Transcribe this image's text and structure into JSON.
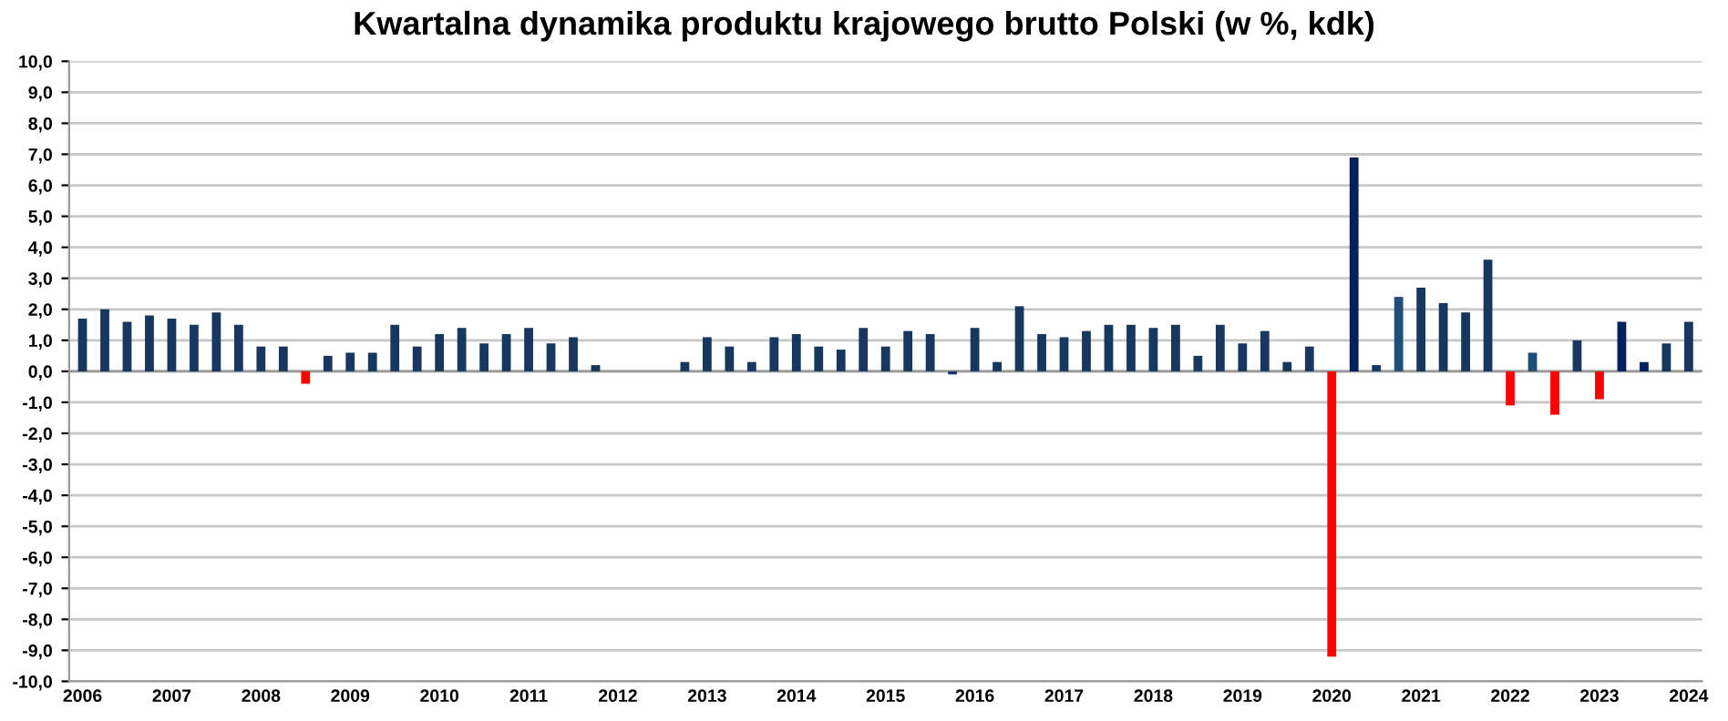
{
  "chart_data": {
    "type": "bar",
    "title": "Kwartalna dynamika produktu krajowego brutto Polski (w %, kdk)",
    "categories": [
      "2006",
      null,
      null,
      null,
      "2007",
      null,
      null,
      null,
      "2008",
      null,
      null,
      null,
      "2009",
      null,
      null,
      null,
      "2010",
      null,
      null,
      null,
      "2011",
      null,
      null,
      null,
      "2012",
      null,
      null,
      null,
      "2013",
      null,
      null,
      null,
      "2014",
      null,
      null,
      null,
      "2015",
      null,
      null,
      null,
      "2016",
      null,
      null,
      null,
      "2017",
      null,
      null,
      null,
      "2018",
      null,
      null,
      null,
      "2019",
      null,
      null,
      null,
      "2020",
      null,
      null,
      null,
      "2021",
      null,
      null,
      null,
      "2022",
      null,
      null,
      null,
      "2023",
      null,
      null,
      null,
      "2024"
    ],
    "values": [
      1.7,
      2.0,
      1.6,
      1.8,
      1.7,
      1.5,
      1.9,
      1.5,
      0.8,
      0.8,
      -0.4,
      0.5,
      0.6,
      0.6,
      1.5,
      0.8,
      1.2,
      1.4,
      0.9,
      1.2,
      1.4,
      0.9,
      1.1,
      0.2,
      0.0,
      0.0,
      0.0,
      0.3,
      1.1,
      0.8,
      0.3,
      1.1,
      1.2,
      0.8,
      0.7,
      1.4,
      0.8,
      1.3,
      1.2,
      -0.1,
      1.4,
      0.3,
      2.1,
      1.2,
      1.1,
      1.3,
      1.5,
      1.5,
      1.4,
      1.5,
      0.5,
      1.5,
      0.9,
      1.3,
      0.3,
      0.8,
      -9.2,
      6.9,
      0.2,
      2.4,
      2.7,
      2.2,
      1.9,
      3.6,
      -1.1,
      0.6,
      -1.4,
      1.0,
      -0.9,
      1.6,
      0.3,
      0.9,
      1.6
    ],
    "colors": [
      "#17375e",
      "#17375e",
      "#17375e",
      "#17375e",
      "#17375e",
      "#17375e",
      "#17375e",
      "#17375e",
      "#17375e",
      "#17375e",
      "#ff0000",
      "#17375e",
      "#17375e",
      "#17375e",
      "#17375e",
      "#17375e",
      "#17375e",
      "#17375e",
      "#17375e",
      "#17375e",
      "#17375e",
      "#17375e",
      "#17375e",
      "#17375e",
      "#17375e",
      "#17375e",
      "#17375e",
      "#17375e",
      "#17375e",
      "#17375e",
      "#17375e",
      "#17375e",
      "#17375e",
      "#17375e",
      "#17375e",
      "#17375e",
      "#17375e",
      "#17375e",
      "#17375e",
      "#17375e",
      "#17375e",
      "#17375e",
      "#17375e",
      "#17375e",
      "#17375e",
      "#17375e",
      "#17375e",
      "#17375e",
      "#17375e",
      "#17375e",
      "#17375e",
      "#17375e",
      "#17375e",
      "#17375e",
      "#17375e",
      "#17375e",
      "#ff0000",
      "#002060",
      "#17375e",
      "#1f4e79",
      "#17375e",
      "#17375e",
      "#17375e",
      "#17375e",
      "#ff0000",
      "#1f4e79",
      "#ff0000",
      "#17375e",
      "#ff0000",
      "#002060",
      "#002060",
      "#17375e",
      "#17375e"
    ],
    "ylim": [
      -10,
      10
    ],
    "yticks": [
      {
        "value": -10,
        "label": "-10,0"
      },
      {
        "value": -9,
        "label": "-9,0"
      },
      {
        "value": -8,
        "label": "-8,0"
      },
      {
        "value": -7,
        "label": "-7,0"
      },
      {
        "value": -6,
        "label": "-6,0"
      },
      {
        "value": -5,
        "label": "-5,0"
      },
      {
        "value": -4,
        "label": "-4,0"
      },
      {
        "value": -3,
        "label": "-3,0"
      },
      {
        "value": -2,
        "label": "-2,0"
      },
      {
        "value": -1,
        "label": "-1,0"
      },
      {
        "value": 0,
        "label": "0,0"
      },
      {
        "value": 1,
        "label": "1,0"
      },
      {
        "value": 2,
        "label": "2,0"
      },
      {
        "value": 3,
        "label": "3,0"
      },
      {
        "value": 4,
        "label": "4,0"
      },
      {
        "value": 5,
        "label": "5,0"
      },
      {
        "value": 6,
        "label": "6,0"
      },
      {
        "value": 7,
        "label": "7,0"
      },
      {
        "value": 8,
        "label": "8,0"
      },
      {
        "value": 9,
        "label": "9,0"
      },
      {
        "value": 10,
        "label": "10,0"
      }
    ],
    "grid": "y",
    "legend": false
  }
}
